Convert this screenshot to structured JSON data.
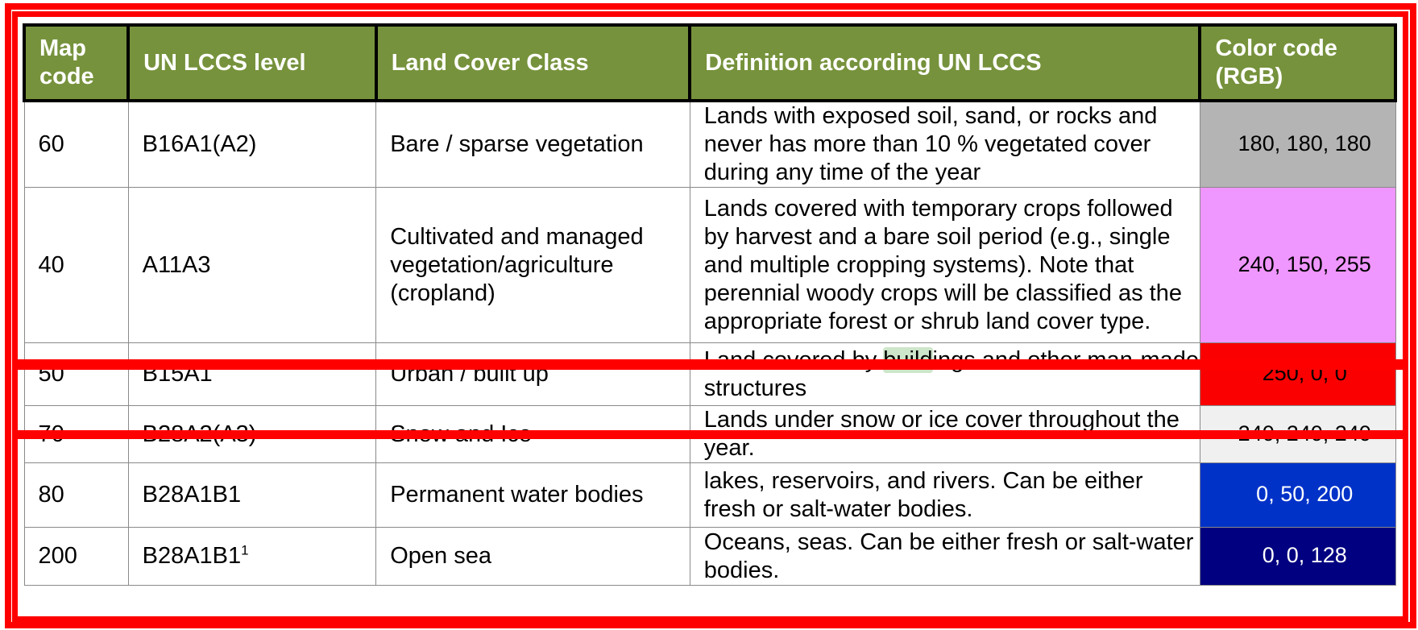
{
  "headers": {
    "map_code": "Map code",
    "lccs": "UN LCCS level",
    "class": "Land Cover Class",
    "definition": "Definition according UN LCCS",
    "color": "Color code (RGB)"
  },
  "rows": [
    {
      "code": "60",
      "lccs": "B16A1(A2)",
      "lccs_sup": "",
      "class": "Bare / sparse vegetation",
      "definition": "Lands with exposed soil, sand, or rocks and never has more than 10 % vegetated cover during any time of the year",
      "rgb": "180, 180, 180",
      "color": "#b4b4b4",
      "text_color": "#000000"
    },
    {
      "code": "40",
      "lccs": "A11A3",
      "lccs_sup": "",
      "class": "Cultivated and managed vegetation/agriculture (cropland)",
      "definition": "Lands covered with temporary crops followed by harvest and a bare soil period (e.g., single and multiple cropping systems). Note that perennial woody crops will be classified as the appropriate forest or shrub land cover type.",
      "rgb": "240, 150, 255",
      "color": "#f096ff",
      "text_color": "#000000"
    },
    {
      "code": "50",
      "lccs": "B15A1",
      "lccs_sup": "",
      "class": "Urban / built up",
      "definition_pre": "Land covered by ",
      "definition_hl": "build",
      "definition_post": "ings and other man-made structures",
      "rgb": "250, 0, 0",
      "color": "#fa0000",
      "text_color": "#000000"
    },
    {
      "code": "70",
      "lccs": "B28A2(A3)",
      "lccs_sup": "",
      "class": "Snow and Ice",
      "definition": "Lands under snow or ice cover throughout the year.",
      "rgb": "240, 240, 240",
      "color": "#f0f0f0",
      "text_color": "#000000"
    },
    {
      "code": "80",
      "lccs": "B28A1B1",
      "lccs_sup": "",
      "class": "Permanent water bodies",
      "definition": "lakes, reservoirs, and rivers. Can be either fresh or salt-water bodies.",
      "rgb": "0, 50, 200",
      "color": "#0032c8",
      "text_color": "#ffffff"
    },
    {
      "code": "200",
      "lccs": "B28A1B1",
      "lccs_sup": "1",
      "class": "Open sea",
      "definition": "Oceans, seas. Can be either fresh or salt-water bodies.",
      "rgb": "0, 0, 128",
      "color": "#000080",
      "text_color": "#ffffff"
    }
  ],
  "annotation_color": "#ff0000"
}
